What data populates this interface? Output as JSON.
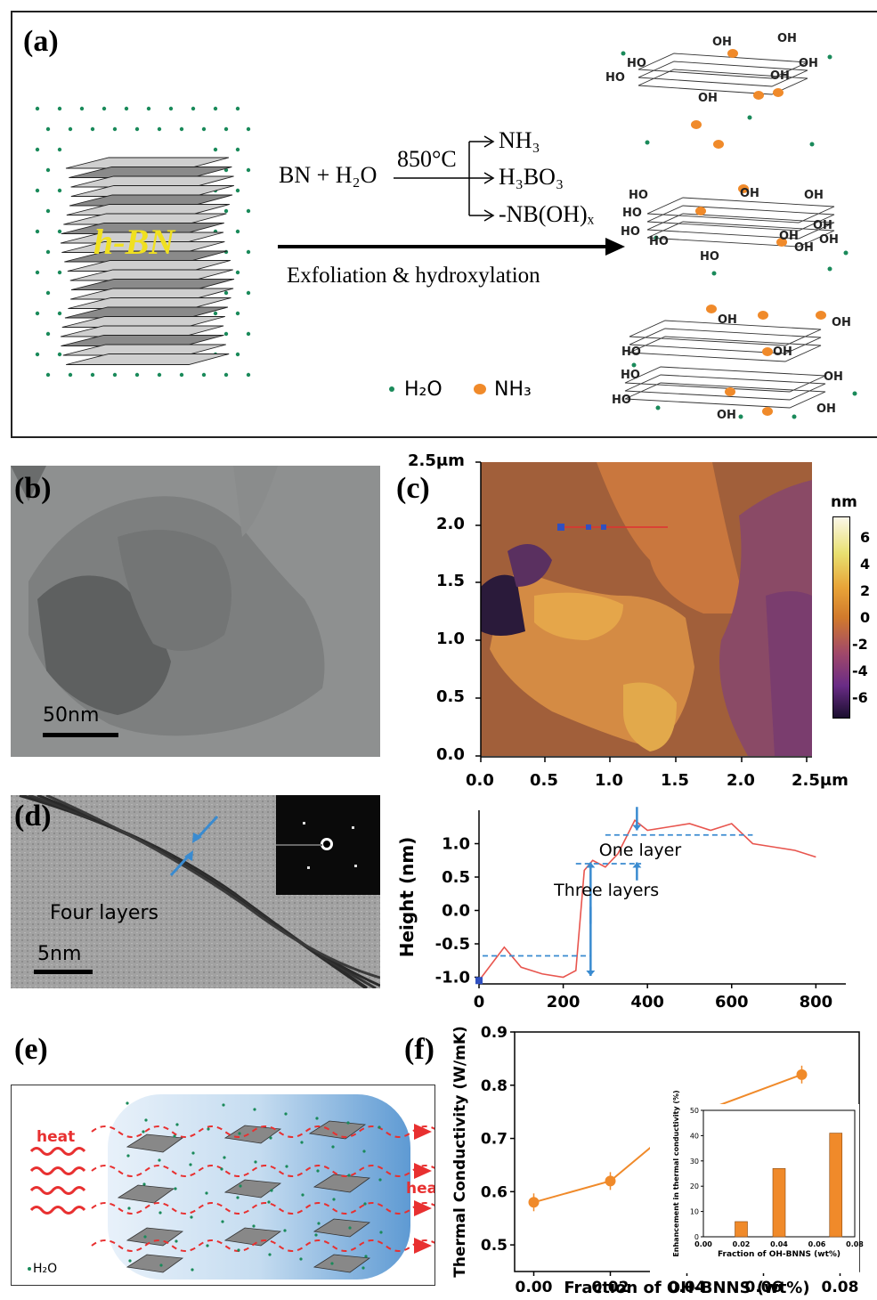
{
  "panels": {
    "a": {
      "label": "(a)",
      "hbn_label": "h-BN",
      "reaction_left": "BN + H₂O",
      "temperature": "850°C",
      "products": [
        "NH₃",
        "H₃BO₃",
        "-NB(OH)ₓ"
      ],
      "arrow_caption": "Exfoliation & hydroxylation",
      "legend": [
        "H₂O",
        "NH₃"
      ],
      "oh_label": "OH",
      "ho_label": "HO",
      "colors": {
        "water": "#1a8a5a",
        "ammonia": "#f08a2a",
        "hbn_text": "#f0e020"
      }
    },
    "b": {
      "label": "(b)",
      "scale_bar": "50nm"
    },
    "c": {
      "label": "(c)",
      "y_ticks": [
        "2.5μm",
        "2.0",
        "1.5",
        "1.0",
        "0.5",
        "0.0"
      ],
      "x_ticks": [
        "0.0",
        "0.5",
        "1.0",
        "1.5",
        "2.0",
        "2.5μm"
      ],
      "colorbar_unit": "nm",
      "colorbar_ticks": [
        "6",
        "4",
        "2",
        "0",
        "-2",
        "-4",
        "-6"
      ]
    },
    "d": {
      "label": "(d)",
      "annotation": "Four layers",
      "scale_bar": "5nm",
      "profile": {
        "ylabel": "Height (nm)",
        "y_ticks": [
          "1.0",
          "0.5",
          "0.0",
          "-0.5",
          "-1.0"
        ],
        "x_ticks": [
          "0",
          "200",
          "400",
          "600",
          "800"
        ],
        "annot_one": "One layer",
        "annot_three": "Three layers"
      }
    },
    "e": {
      "label": "(e)",
      "heat_in": "heat",
      "heat_out": "heat",
      "legend": "H₂O"
    },
    "f": {
      "label": "(f)"
    }
  },
  "chart_data": [
    {
      "type": "line",
      "title": "",
      "xlabel": "",
      "ylabel": "Height (nm)",
      "x": [
        0,
        30,
        60,
        100,
        150,
        200,
        230,
        250,
        270,
        300,
        330,
        370,
        400,
        450,
        500,
        550,
        600,
        650,
        700,
        750,
        800
      ],
      "y": [
        -1.05,
        -0.8,
        -0.55,
        -0.85,
        -0.95,
        -1.0,
        -0.9,
        0.6,
        0.75,
        0.65,
        0.85,
        1.35,
        1.2,
        1.25,
        1.3,
        1.2,
        1.3,
        1.0,
        0.95,
        0.9,
        0.8
      ],
      "xlim": [
        0,
        850
      ],
      "ylim": [
        -1.1,
        1.5
      ],
      "x_ticks": [
        0,
        200,
        400,
        600,
        800
      ],
      "y_ticks": [
        1.0,
        0.5,
        0.0,
        -0.5,
        -1.0
      ],
      "color": "#e8554e"
    },
    {
      "type": "line",
      "title": "",
      "xlabel": "Fraction of OH-BNNS (wt%)",
      "ylabel": "Thermal Conductivity (W/mK)",
      "x": [
        0.0,
        0.02,
        0.04,
        0.07
      ],
      "y": [
        0.58,
        0.62,
        0.74,
        0.82
      ],
      "xlim": [
        -0.005,
        0.085
      ],
      "ylim": [
        0.45,
        0.9
      ],
      "x_ticks": [
        "0.00",
        "0.02",
        "0.04",
        "0.06",
        "0.08"
      ],
      "y_ticks": [
        "0.9",
        "0.8",
        "0.7",
        "0.6",
        "0.5"
      ],
      "color": "#f08a2a"
    },
    {
      "type": "bar",
      "title": "",
      "xlabel": "Fraction of OH-BNNS (wt%)",
      "ylabel": "Enhancement in thermal conductivity (%)",
      "x": [
        0.02,
        0.04,
        0.07
      ],
      "values": [
        6,
        27,
        41
      ],
      "xlim": [
        0,
        0.08
      ],
      "ylim": [
        0,
        50
      ],
      "x_ticks": [
        "0.00",
        "0.02",
        "0.04",
        "0.06",
        "0.08"
      ],
      "y_ticks": [
        "0",
        "10",
        "20",
        "30",
        "40",
        "50"
      ],
      "color": "#f08a2a"
    }
  ]
}
